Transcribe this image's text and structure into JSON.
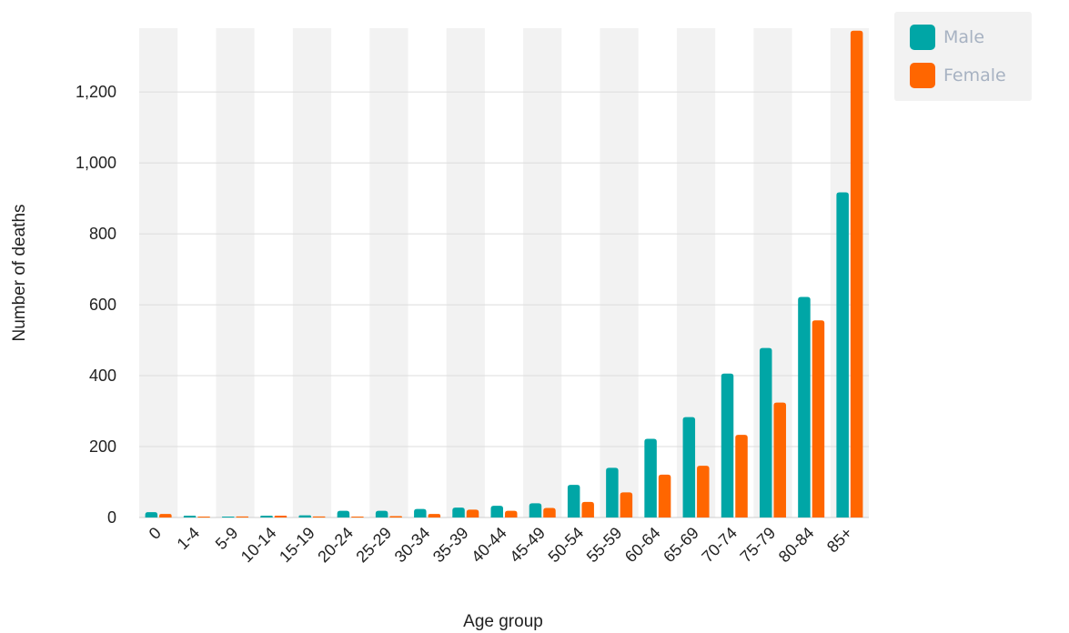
{
  "chart_data": {
    "type": "bar",
    "xlabel": "Age group",
    "ylabel": "Number of deaths",
    "ylim": [
      0,
      1380
    ],
    "yticks": [
      0,
      200,
      400,
      600,
      800,
      1000,
      1200
    ],
    "ytick_labels": [
      "0",
      "200",
      "400",
      "600",
      "800",
      "1,000",
      "1,200"
    ],
    "categories": [
      "0",
      "1-4",
      "5-9",
      "10-14",
      "15-19",
      "20-24",
      "25-29",
      "30-34",
      "35-39",
      "40-44",
      "45-49",
      "50-54",
      "55-59",
      "60-64",
      "65-69",
      "70-74",
      "75-79",
      "80-84",
      "85+"
    ],
    "series": [
      {
        "name": "Male",
        "color": "#00a6a6",
        "values": [
          15,
          5,
          2,
          5,
          6,
          19,
          19,
          24,
          28,
          33,
          40,
          92,
          140,
          222,
          283,
          406,
          478,
          622,
          917
        ]
      },
      {
        "name": "Female",
        "color": "#ff6600",
        "values": [
          10,
          2,
          3,
          5,
          3,
          2,
          4,
          10,
          22,
          19,
          27,
          44,
          71,
          121,
          146,
          233,
          324,
          556,
          1373
        ]
      }
    ],
    "grid": true,
    "alternate_band_color": "#f2f2f2",
    "legend_position": "top-right"
  }
}
